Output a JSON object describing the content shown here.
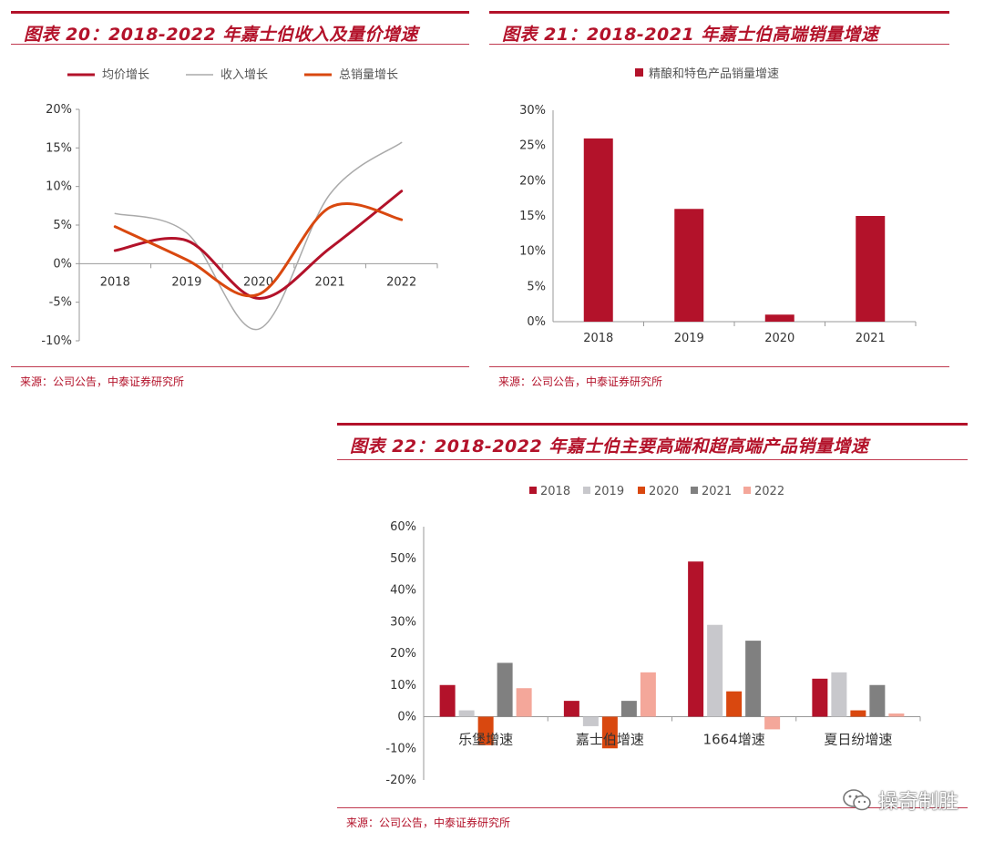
{
  "panels": {
    "p20": {
      "title": "图表 20：2018-2022 年嘉士伯收入及量价增速",
      "source": "来源：公司公告，中泰证券研究所"
    },
    "p21": {
      "title": "图表 21：2018-2021 年嘉士伯高端销量增速",
      "source": "来源：公司公告，中泰证券研究所"
    },
    "p22": {
      "title": "图表 22：2018-2022 年嘉士伯主要高端和超高端产品销量增速",
      "source": "来源：公司公告，中泰证券研究所"
    }
  },
  "watermark": {
    "text": "操奇制胜",
    "icon": "wechat-icon"
  },
  "colors": {
    "accent": "#b3122a",
    "gray": "#aaaaaa",
    "orange": "#d9480f",
    "dark_gray": "#808080",
    "salmon": "#f4a79a"
  },
  "chart_data": [
    {
      "id": "chart20",
      "type": "line",
      "categories": [
        "2018",
        "2019",
        "2020",
        "2021",
        "2022"
      ],
      "ylim": [
        -0.1,
        0.2
      ],
      "yticks": [
        "20%",
        "15%",
        "10%",
        "5%",
        "0%",
        "-5%",
        "-10%"
      ],
      "legend_position": "top",
      "series": [
        {
          "name": "均价增长",
          "values": [
            0.017,
            0.03,
            -0.045,
            0.02,
            0.094
          ],
          "color": "#b3122a"
        },
        {
          "name": "收入增长",
          "values": [
            0.065,
            0.04,
            -0.085,
            0.09,
            0.157
          ],
          "color": "#aaaaaa"
        },
        {
          "name": "总销量增长",
          "values": [
            0.048,
            0.005,
            -0.04,
            0.073,
            0.057
          ],
          "color": "#d9480f"
        }
      ]
    },
    {
      "id": "chart21",
      "type": "bar",
      "categories": [
        "2018",
        "2019",
        "2020",
        "2021"
      ],
      "ylim": [
        0,
        0.3
      ],
      "yticks": [
        "30%",
        "25%",
        "20%",
        "15%",
        "10%",
        "5%",
        "0%"
      ],
      "legend_position": "top",
      "series": [
        {
          "name": "精酿和特色产品销量增速",
          "values": [
            0.26,
            0.16,
            0.01,
            0.15
          ],
          "color": "#b3122a"
        }
      ]
    },
    {
      "id": "chart22",
      "type": "bar",
      "categories": [
        "乐堡增速",
        "嘉士伯增速",
        "1664增速",
        "夏日纷增速"
      ],
      "ylim": [
        -0.2,
        0.6
      ],
      "yticks": [
        "60%",
        "50%",
        "40%",
        "30%",
        "20%",
        "10%",
        "0%",
        "-10%",
        "-20%"
      ],
      "legend_position": "top",
      "series": [
        {
          "name": "2018",
          "values": [
            0.1,
            0.05,
            0.49,
            0.12
          ],
          "color": "#b3122a"
        },
        {
          "name": "2019",
          "values": [
            0.02,
            -0.03,
            0.29,
            0.14
          ],
          "color": "#c8c8cc"
        },
        {
          "name": "2020",
          "values": [
            -0.09,
            -0.1,
            0.08,
            0.02
          ],
          "color": "#d9480f"
        },
        {
          "name": "2021",
          "values": [
            0.17,
            0.05,
            0.24,
            0.1
          ],
          "color": "#808080"
        },
        {
          "name": "2022",
          "values": [
            0.09,
            0.14,
            -0.04,
            0.01
          ],
          "color": "#f4a79a"
        }
      ]
    }
  ]
}
